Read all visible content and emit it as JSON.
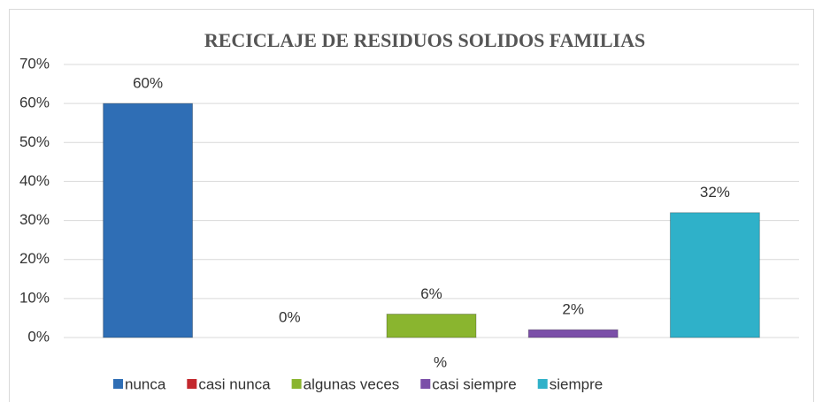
{
  "chart_data": {
    "type": "bar",
    "title": "RECICLAJE DE RESIDUOS SOLIDOS FAMILIAS",
    "categories": [
      "%"
    ],
    "series": [
      {
        "name": "nunca",
        "color": "#2f6eb5",
        "values": [
          60
        ],
        "value_labels": [
          "60%"
        ]
      },
      {
        "name": "casi nunca",
        "color": "#c3282d",
        "values": [
          0
        ],
        "value_labels": [
          "0%"
        ]
      },
      {
        "name": "algunas veces",
        "color": "#8ab52f",
        "values": [
          6
        ],
        "value_labels": [
          "6%"
        ]
      },
      {
        "name": "casi siempre",
        "color": "#7b4fa8",
        "values": [
          2
        ],
        "value_labels": [
          "2%"
        ]
      },
      {
        "name": "siempre",
        "color": "#2fb1c9",
        "values": [
          32
        ],
        "value_labels": [
          "32%"
        ]
      }
    ],
    "ylim": [
      0,
      70
    ],
    "yticks": [
      {
        "value": 0,
        "label": "0%"
      },
      {
        "value": 10,
        "label": "10%"
      },
      {
        "value": 20,
        "label": "20%"
      },
      {
        "value": 30,
        "label": "30%"
      },
      {
        "value": 40,
        "label": "40%"
      },
      {
        "value": 50,
        "label": "50%"
      },
      {
        "value": 60,
        "label": "60%"
      },
      {
        "value": 70,
        "label": "70%"
      }
    ],
    "grid": true,
    "legend": "bottom"
  }
}
